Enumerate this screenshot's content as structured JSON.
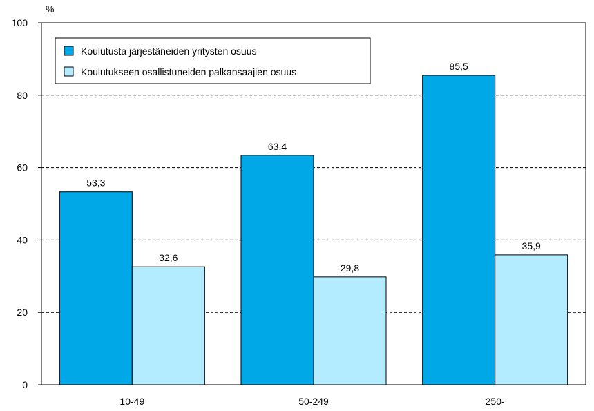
{
  "chart_data": {
    "type": "bar",
    "unit_label": "%",
    "categories": [
      "10-49",
      "50-249",
      "250-"
    ],
    "series": [
      {
        "name": "Koulutusta järjestäneiden yritysten osuus",
        "values": [
          53.3,
          63.4,
          85.5
        ],
        "labels": [
          "53,3",
          "63,4",
          "85,5"
        ],
        "color": "#00a8e8"
      },
      {
        "name": "Koulutukseen osallistuneiden palkansaajien osuus",
        "values": [
          32.6,
          29.8,
          35.9
        ],
        "labels": [
          "32,6",
          "29,8",
          "35,9"
        ],
        "color": "#b3ecff"
      }
    ],
    "ylim": [
      0,
      100
    ],
    "yticks": [
      0,
      20,
      40,
      60,
      80,
      100
    ],
    "ytick_labels": [
      "0",
      "20",
      "40",
      "60",
      "80",
      "100"
    ],
    "grid": "horizontal dashed",
    "legend_position": "top-left"
  }
}
